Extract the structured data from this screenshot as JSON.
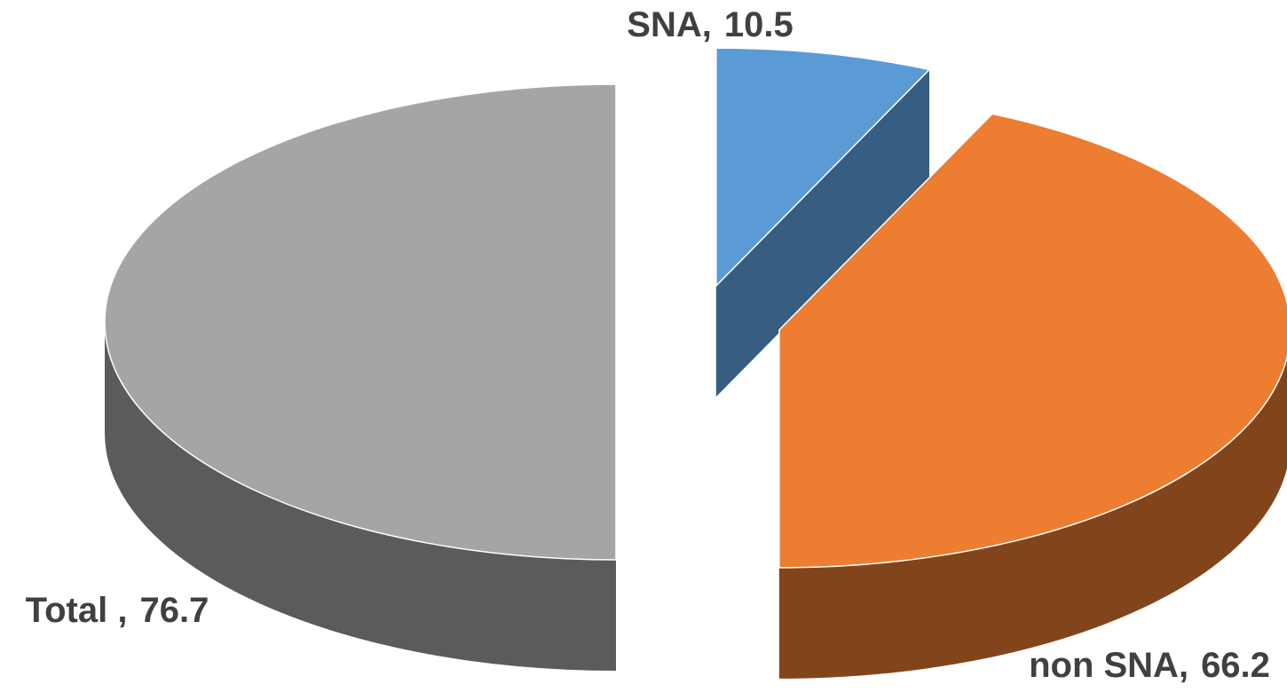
{
  "chart_data": {
    "type": "pie3d",
    "categories": [
      "SNA,",
      "non SNA,",
      "Total ,"
    ],
    "values": [
      10.5,
      66.2,
      76.7
    ],
    "colors": [
      "#5b9bd5",
      "#ed7d31",
      "#a5a5a5"
    ],
    "exploded": true
  }
}
